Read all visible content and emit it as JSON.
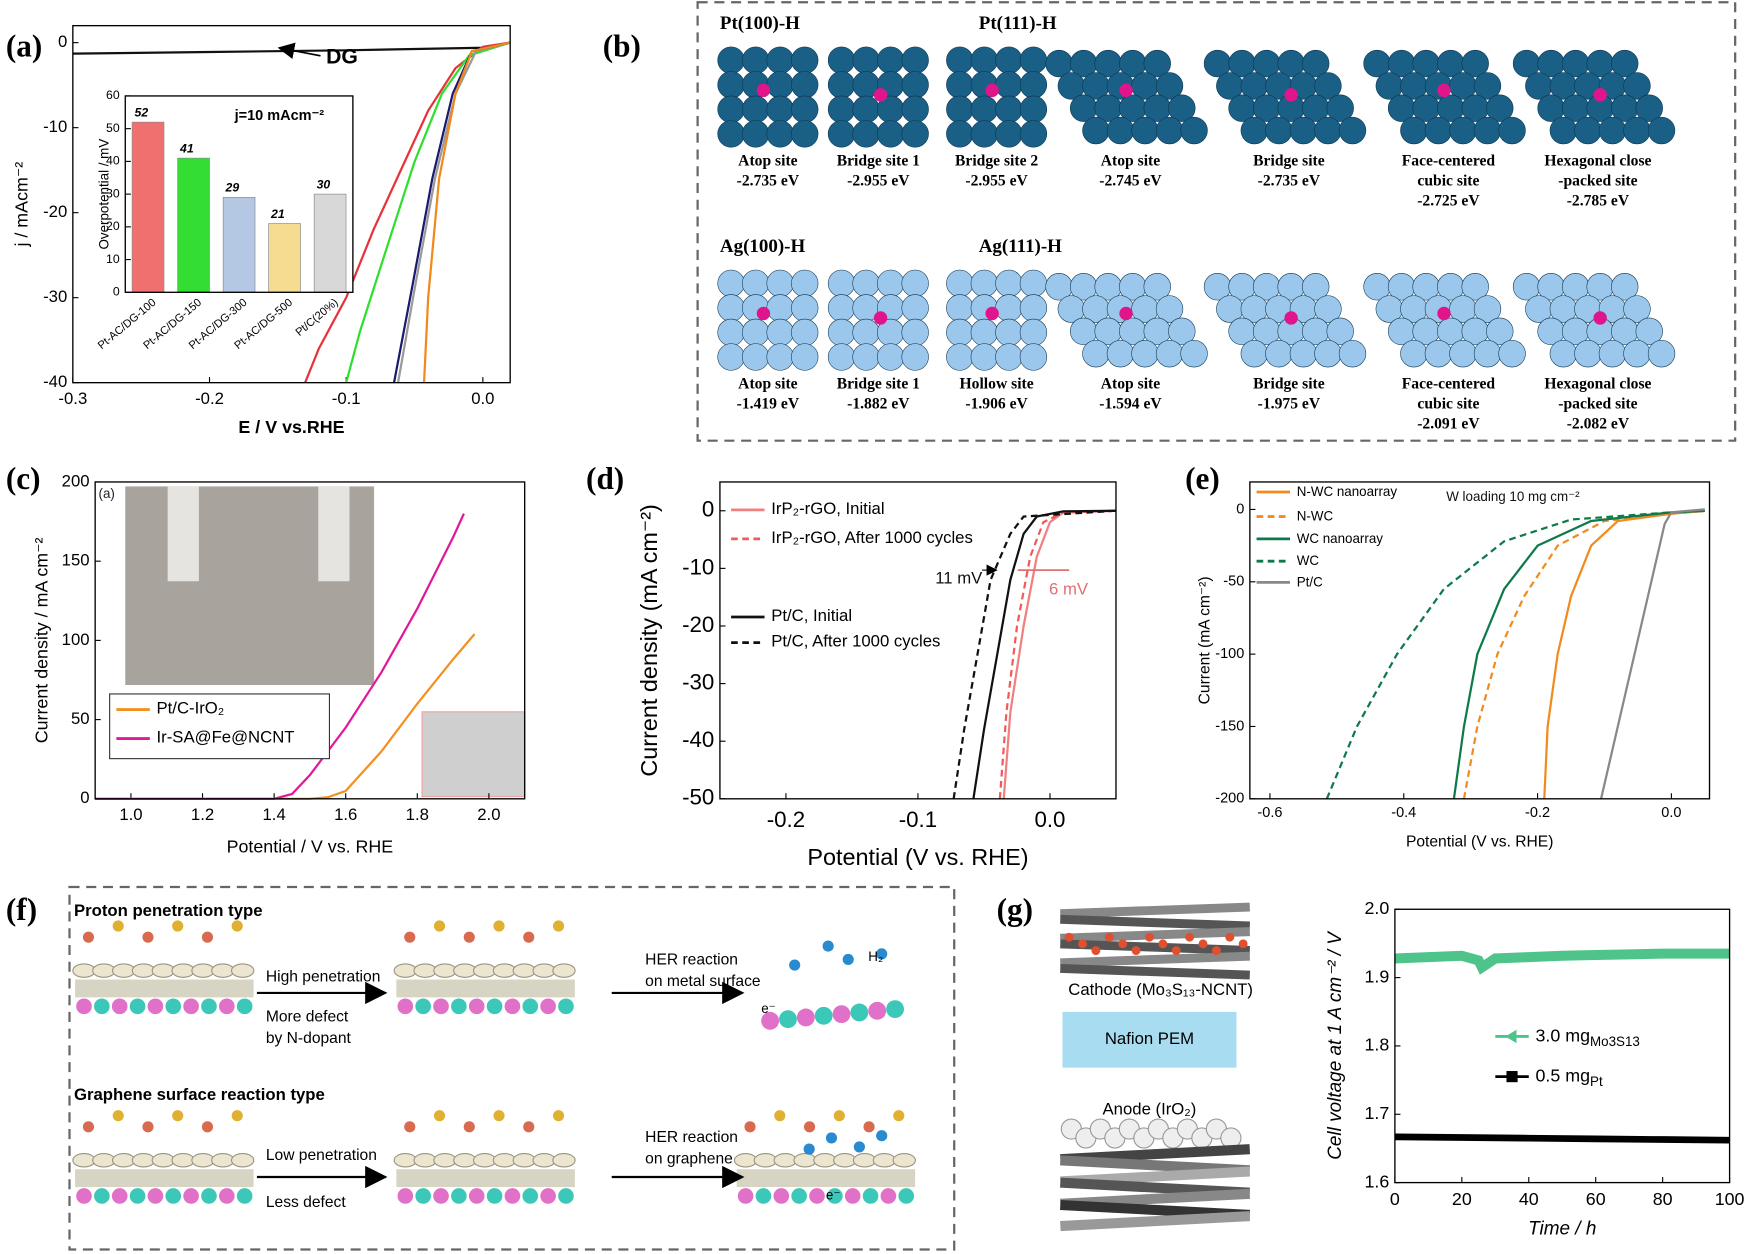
{
  "chart_data": [
    {
      "type": "line",
      "label": "(a)",
      "xlabel": "E / V vs.RHE",
      "ylabel": "j / mAcm⁻²",
      "xlim": [
        -0.3,
        0.02
      ],
      "ylim": [
        -40,
        2
      ],
      "xticks": [
        -0.3,
        -0.2,
        -0.1,
        {
          "value": 0,
          "label": "0.0"
        }
      ],
      "yticks": [
        0,
        -10,
        -20,
        -30,
        -40
      ],
      "grid": false,
      "series": [
        {
          "name": "DG",
          "color": "#111111",
          "x": [
            -0.3,
            -0.2,
            -0.1,
            0,
            0.02
          ],
          "values": [
            -1.3,
            -1.1,
            -0.9,
            -0.6,
            0
          ]
        },
        {
          "color": "#e8323a",
          "x": [
            -0.13,
            -0.12,
            -0.1,
            -0.08,
            -0.06,
            -0.04,
            -0.02,
            0,
            0.02
          ],
          "values": [
            -40,
            -36,
            -30,
            -22,
            -15,
            -8,
            -3,
            -0.5,
            0
          ]
        },
        {
          "color": "#2ee02e",
          "x": [
            -0.1,
            -0.09,
            -0.07,
            -0.05,
            -0.03,
            -0.01,
            0.02
          ],
          "values": [
            -40,
            -34,
            -24,
            -14,
            -6,
            -1.5,
            0
          ]
        },
        {
          "color": "#9a9a9a",
          "x": [
            -0.062,
            -0.05,
            -0.035,
            -0.02,
            -0.005,
            0.02
          ],
          "values": [
            -40,
            -29,
            -16,
            -6,
            -1,
            0
          ]
        },
        {
          "color": "#1a1a6e",
          "x": [
            -0.065,
            -0.052,
            -0.037,
            -0.022,
            -0.008,
            0.02
          ],
          "values": [
            -40,
            -29,
            -16,
            -6,
            -1,
            0
          ]
        },
        {
          "color": "#f08a1c",
          "x": [
            -0.043,
            -0.04,
            -0.032,
            -0.02,
            -0.008,
            0.02
          ],
          "values": [
            -40,
            -30,
            -16,
            -6,
            -1,
            0
          ]
        }
      ]
    },
    {
      "type": "bar",
      "title": "j=10 mAcm⁻²",
      "ylabel": "Overpotential / mV",
      "categories": [
        "Pt-AC/DG-100",
        "Pt-AC/DG-150",
        "Pt-AC/DG-300",
        "Pt-AC/DG-500",
        "Pt/C(20%)"
      ],
      "values": [
        52,
        41,
        29,
        21,
        30
      ],
      "colors": [
        "#f07070",
        "#33dd33",
        "#b4c8e4",
        "#f5dc90",
        "#d8d8d8"
      ],
      "ylim": [
        0,
        60
      ],
      "yticks": [
        0,
        10,
        20,
        30,
        40,
        50,
        60
      ],
      "grid": false
    },
    {
      "type": "line",
      "label": "(c)",
      "xlabel": "Potential / V vs. RHE",
      "ylabel": "Current density / mA cm⁻²",
      "annotations": [
        "(a)"
      ],
      "xlim": [
        0.9,
        2.1
      ],
      "ylim": [
        0,
        200
      ],
      "xticks": [
        {
          "value": 1,
          "label": "1.0"
        },
        1.2,
        1.4,
        1.6,
        1.8,
        {
          "value": 2,
          "label": "2.0"
        }
      ],
      "yticks": [
        0,
        50,
        100,
        150,
        200
      ],
      "grid": false,
      "legend": "lower left",
      "series": [
        {
          "name": "Pt/C-IrO₂",
          "color": "#f39020",
          "x": [
            0.9,
            1.5,
            1.55,
            1.6,
            1.7,
            1.8,
            1.9,
            1.96
          ],
          "values": [
            0,
            0,
            1,
            5,
            30,
            60,
            88,
            104
          ]
        },
        {
          "name": "Ir-SA@Fe@NCNT",
          "color": "#e0189a",
          "x": [
            0.9,
            1.4,
            1.45,
            1.5,
            1.6,
            1.7,
            1.8,
            1.9,
            1.93
          ],
          "values": [
            0,
            0,
            3,
            15,
            45,
            80,
            120,
            165,
            180
          ]
        }
      ]
    },
    {
      "type": "line",
      "label": "(d)",
      "xlabel": "Potential (V vs. RHE)",
      "ylabel": "Current density (mA cm⁻²)",
      "annotations": [
        "11 mV",
        "6 mV"
      ],
      "xlim": [
        -0.25,
        0.05
      ],
      "ylim": [
        -50,
        5
      ],
      "xticks": [
        -0.2,
        -0.1,
        {
          "value": 0,
          "label": "0.0"
        }
      ],
      "yticks": [
        0,
        -10,
        -20,
        -30,
        -40,
        -50
      ],
      "grid": false,
      "legend": "upper left",
      "series": [
        {
          "name": "IrP₂-rGO, Initial",
          "color": "#f08080",
          "dash": false,
          "x": [
            -0.035,
            -0.03,
            -0.02,
            -0.01,
            0,
            0.01,
            0.05
          ],
          "values": [
            -50,
            -35,
            -20,
            -8,
            -2,
            -0.3,
            0
          ]
        },
        {
          "name": "IrP₂-rGO, After 1000 cycles",
          "color": "#f05a5a",
          "dash": true,
          "x": [
            -0.038,
            -0.033,
            -0.025,
            -0.015,
            -0.005,
            0.01,
            0.05
          ],
          "values": [
            -50,
            -35,
            -20,
            -8,
            -2,
            -0.3,
            0
          ]
        },
        {
          "name": "Pt/C, Initial",
          "color": "#111111",
          "dash": false,
          "x": [
            -0.058,
            -0.05,
            -0.04,
            -0.03,
            -0.02,
            -0.01,
            0.01,
            0.05
          ],
          "values": [
            -50,
            -38,
            -25,
            -12,
            -4,
            -1,
            -0.1,
            0
          ]
        },
        {
          "name": "Pt/C, After 1000 cycles",
          "color": "#111111",
          "dash": true,
          "x": [
            -0.073,
            -0.065,
            -0.055,
            -0.045,
            -0.03,
            -0.02,
            0.05
          ],
          "values": [
            -50,
            -38,
            -25,
            -12,
            -4,
            -1,
            0
          ]
        }
      ]
    },
    {
      "type": "line",
      "label": "(e)",
      "xlabel": "Potential (V vs. RHE)",
      "ylabel": "Current (mA cm⁻²)",
      "annotations": [
        "W loading 10 mg cm⁻²"
      ],
      "xlim": [
        -0.63,
        0.057
      ],
      "ylim": [
        -200,
        19
      ],
      "xticks": [
        -0.6,
        -0.4,
        -0.2,
        {
          "value": 0,
          "label": "0.0"
        }
      ],
      "yticks": [
        0,
        -50,
        -100,
        -150,
        -200
      ],
      "grid": false,
      "legend": "upper left",
      "series": [
        {
          "name": "N-WC nanoarray",
          "color": "#f28a1e",
          "dash": false,
          "x": [
            -0.19,
            -0.185,
            -0.17,
            -0.15,
            -0.12,
            -0.08,
            0,
            0.05
          ],
          "values": [
            -200,
            -150,
            -100,
            -60,
            -25,
            -8,
            -3,
            -1
          ]
        },
        {
          "name": "N-WC",
          "color": "#f28a1e",
          "dash": true,
          "x": [
            -0.31,
            -0.29,
            -0.26,
            -0.22,
            -0.17,
            -0.1,
            0,
            0.05
          ],
          "values": [
            -200,
            -150,
            -100,
            -60,
            -25,
            -8,
            -3,
            -1
          ]
        },
        {
          "name": "WC nanoarray",
          "color": "#0e7a4a",
          "dash": false,
          "x": [
            -0.325,
            -0.31,
            -0.29,
            -0.25,
            -0.2,
            -0.12,
            0,
            0.05
          ],
          "values": [
            -200,
            -150,
            -100,
            -55,
            -25,
            -8,
            -2,
            -1
          ]
        },
        {
          "name": "WC",
          "color": "#0e7a4a",
          "dash": true,
          "x": [
            -0.515,
            -0.47,
            -0.41,
            -0.34,
            -0.25,
            -0.15,
            0,
            0.05
          ],
          "values": [
            -200,
            -150,
            -100,
            -55,
            -22,
            -7,
            -2,
            -1
          ]
        },
        {
          "name": "Pt/C",
          "color": "#888888",
          "dash": false,
          "x": [
            -0.105,
            -0.08,
            -0.055,
            -0.03,
            -0.01,
            0,
            0.05
          ],
          "values": [
            -200,
            -150,
            -100,
            -50,
            -10,
            -2,
            0
          ]
        }
      ]
    },
    {
      "type": "line",
      "xlabel": "Time / h",
      "ylabel": "Cell voltage at 1 A cm⁻² / V",
      "xlim": [
        0,
        100
      ],
      "ylim": [
        1.6,
        2.0
      ],
      "xticks": [
        0,
        20,
        40,
        60,
        80,
        100
      ],
      "yticks": [
        1.6,
        1.7,
        1.8,
        1.9,
        {
          "value": 2,
          "label": "2.0"
        }
      ],
      "grid": false,
      "legend": "center right",
      "series": [
        {
          "name": "3.0 mg",
          "name_sub": "Mo3S13",
          "color": "#4ec48a",
          "marker": "triangle",
          "x": [
            0,
            10,
            20,
            25,
            26,
            30,
            40,
            50,
            60,
            70,
            80,
            90,
            100
          ],
          "values": [
            1.928,
            1.93,
            1.932,
            1.925,
            1.915,
            1.928,
            1.93,
            1.932,
            1.933,
            1.934,
            1.935,
            1.935,
            1.935
          ]
        },
        {
          "name": "0.5 mg",
          "name_sub": "Pt",
          "color": "#000000",
          "marker": "square",
          "x": [
            0,
            20,
            40,
            60,
            80,
            100
          ],
          "values": [
            1.667,
            1.666,
            1.665,
            1.664,
            1.663,
            1.662
          ]
        }
      ]
    }
  ],
  "diagram_b": {
    "label": "(b)",
    "groups": [
      {
        "title": "Pt(100)-H",
        "sites": [
          {
            "name": [
              "Atop site"
            ],
            "energy": "-2.735 eV"
          },
          {
            "name": [
              "Bridge site 1"
            ],
            "energy": "-2.955 eV"
          },
          {
            "name": [
              "Bridge site 2"
            ],
            "energy": "-2.955 eV"
          }
        ]
      },
      {
        "title": "Pt(111)-H",
        "sites": [
          {
            "name": [
              "Atop site"
            ],
            "energy": "-2.745 eV"
          },
          {
            "name": [
              "Bridge site"
            ],
            "energy": "-2.735 eV"
          },
          {
            "name": [
              "Face-centered",
              "cubic site"
            ],
            "energy": "-2.725 eV"
          },
          {
            "name": [
              "Hexagonal close",
              "-packed site"
            ],
            "energy": "-2.785 eV"
          }
        ]
      },
      {
        "title": "Ag(100)-H",
        "sites": [
          {
            "name": [
              "Atop site"
            ],
            "energy": "-1.419 eV"
          },
          {
            "name": [
              "Bridge site 1"
            ],
            "energy": "-1.882 eV"
          },
          {
            "name": [
              "Hollow site"
            ],
            "energy": "-1.906 eV"
          }
        ]
      },
      {
        "title": "Ag(111)-H",
        "sites": [
          {
            "name": [
              "Atop site"
            ],
            "energy": "-1.594 eV"
          },
          {
            "name": [
              "Bridge site"
            ],
            "energy": "-1.975 eV"
          },
          {
            "name": [
              "Face-centered",
              "cubic site"
            ],
            "energy": "-2.091 eV"
          },
          {
            "name": [
              "Hexagonal close",
              "-packed site"
            ],
            "energy": "-2.082 eV"
          }
        ]
      }
    ]
  },
  "diagram_f": {
    "label": "(f)",
    "top": {
      "title": "Proton penetration type",
      "step1": "High penetration",
      "step1_note": [
        "More defect",
        "by N-dopant"
      ],
      "step2": [
        "HER reaction",
        "on metal surface"
      ],
      "product": "H₂",
      "electron": "e⁻"
    },
    "bottom": {
      "title": "Graphene surface reaction type",
      "step1": "Low penetration",
      "step1_note": [
        "Less defect"
      ],
      "step2": [
        "HER reaction",
        "on graphene"
      ],
      "electron": "e⁻"
    }
  },
  "diagram_g": {
    "label": "(g)",
    "cathode": "Cathode (Mo₃S₁₃-NCNT)",
    "membrane": "Nafion PEM",
    "anode": "Anode (IrO₂)"
  }
}
